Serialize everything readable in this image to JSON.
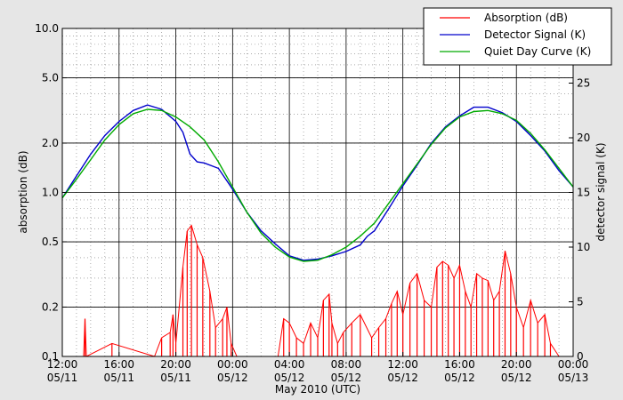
{
  "chart_data": {
    "type": "line",
    "title": "",
    "xlabel": "May 2010 (UTC)",
    "ylabel_left": "absorption (dB)",
    "ylabel_right": "detector signal (K)",
    "y_left_scale": "log",
    "ylim_left": [
      0.1,
      10.0
    ],
    "ylim_right": [
      0,
      30
    ],
    "xlim_hours": [
      0,
      36
    ],
    "x_tick_labels": [
      {
        "hour": 0,
        "time": "12:00",
        "date": "05/11"
      },
      {
        "hour": 4,
        "time": "16:00",
        "date": "05/11"
      },
      {
        "hour": 8,
        "time": "20:00",
        "date": "05/11"
      },
      {
        "hour": 12,
        "time": "00:00",
        "date": "05/12"
      },
      {
        "hour": 16,
        "time": "04:00",
        "date": "05/12"
      },
      {
        "hour": 20,
        "time": "08:00",
        "date": "05/12"
      },
      {
        "hour": 24,
        "time": "12:00",
        "date": "05/12"
      },
      {
        "hour": 28,
        "time": "16:00",
        "date": "05/12"
      },
      {
        "hour": 32,
        "time": "20:00",
        "date": "05/12"
      },
      {
        "hour": 36,
        "time": "00:00",
        "date": "05/13"
      }
    ],
    "y_left_ticks": [
      {
        "value": 0.1,
        "label": "0.1"
      },
      {
        "value": 0.2,
        "label": "0.2"
      },
      {
        "value": 0.5,
        "label": "0.5"
      },
      {
        "value": 1.0,
        "label": "1.0"
      },
      {
        "value": 2.0,
        "label": "2.0"
      },
      {
        "value": 5.0,
        "label": "5.0"
      },
      {
        "value": 10.0,
        "label": "10.0"
      }
    ],
    "y_right_ticks": [
      {
        "value": 0,
        "label": "0"
      },
      {
        "value": 5,
        "label": "5"
      },
      {
        "value": 10,
        "label": "10"
      },
      {
        "value": 15,
        "label": "15"
      },
      {
        "value": 20,
        "label": "20"
      },
      {
        "value": 25,
        "label": "25"
      }
    ],
    "grid": true,
    "legend_position": "top-right",
    "series": [
      {
        "name": "Absorption (dB)",
        "axis": "left",
        "color": "#ff0000",
        "x": [
          1.5,
          1.6,
          1.7,
          3.5,
          6.5,
          7.0,
          7.6,
          7.8,
          8.0,
          8.5,
          8.8,
          9.1,
          9.5,
          9.9,
          10.4,
          10.8,
          11.3,
          11.6,
          11.9,
          12.3,
          15.2,
          15.6,
          16.0,
          16.5,
          17.0,
          17.5,
          18.0,
          18.4,
          18.8,
          19.0,
          19.4,
          19.8,
          20.4,
          21.0,
          21.8,
          22.3,
          22.8,
          23.2,
          23.6,
          24.0,
          24.5,
          25.0,
          25.5,
          26.0,
          26.4,
          26.8,
          27.2,
          27.6,
          28.0,
          28.4,
          28.8,
          29.2,
          29.6,
          30.0,
          30.4,
          30.8,
          31.2,
          31.6,
          32.0,
          32.5,
          33.0,
          33.5,
          34.0,
          34.4,
          35.0
        ],
        "y": [
          0.1,
          0.17,
          0.1,
          0.12,
          0.1,
          0.13,
          0.14,
          0.18,
          0.12,
          0.35,
          0.58,
          0.63,
          0.48,
          0.4,
          0.25,
          0.15,
          0.17,
          0.2,
          0.12,
          0.1,
          0.1,
          0.17,
          0.16,
          0.13,
          0.12,
          0.16,
          0.13,
          0.22,
          0.24,
          0.16,
          0.12,
          0.14,
          0.16,
          0.18,
          0.13,
          0.15,
          0.17,
          0.21,
          0.25,
          0.18,
          0.28,
          0.32,
          0.22,
          0.2,
          0.35,
          0.38,
          0.36,
          0.3,
          0.36,
          0.25,
          0.2,
          0.32,
          0.3,
          0.29,
          0.22,
          0.25,
          0.44,
          0.32,
          0.2,
          0.15,
          0.22,
          0.16,
          0.18,
          0.12,
          0.1
        ]
      },
      {
        "name": "Detector Signal (K)",
        "axis": "right",
        "color": "#0000cc",
        "x": [
          0,
          1,
          2,
          3,
          4,
          5,
          6,
          7,
          8,
          8.5,
          9,
          9.5,
          10,
          11,
          12,
          13,
          14,
          15,
          16,
          17,
          18,
          19,
          20,
          21,
          21.5,
          22,
          23,
          24,
          25,
          26,
          27,
          28,
          29,
          30,
          31,
          32,
          33,
          34,
          35,
          36
        ],
        "y": [
          14.5,
          16.5,
          18.5,
          20.2,
          21.5,
          22.5,
          23.0,
          22.6,
          21.5,
          20.5,
          18.5,
          17.8,
          17.7,
          17.2,
          15.3,
          13.2,
          11.5,
          10.3,
          9.2,
          8.8,
          8.9,
          9.2,
          9.6,
          10.2,
          11.0,
          11.5,
          13.5,
          15.6,
          17.5,
          19.5,
          21.0,
          22.0,
          22.8,
          22.8,
          22.3,
          21.5,
          20.2,
          18.8,
          17.0,
          15.5
        ]
      },
      {
        "name": "Quiet Day Curve (K)",
        "axis": "right",
        "color": "#00aa00",
        "x": [
          0,
          1,
          2,
          3,
          4,
          5,
          6,
          7,
          8,
          9,
          10,
          11,
          12,
          13,
          14,
          15,
          16,
          17,
          18,
          19,
          20,
          21,
          22,
          23,
          24,
          25,
          26,
          27,
          28,
          29,
          30,
          31,
          32,
          33,
          34,
          35,
          36
        ],
        "y": [
          14.5,
          16.2,
          18.0,
          19.8,
          21.2,
          22.2,
          22.6,
          22.5,
          21.9,
          21.0,
          19.8,
          17.8,
          15.5,
          13.2,
          11.3,
          10.0,
          9.1,
          8.7,
          8.8,
          9.3,
          10.0,
          11.0,
          12.2,
          14.0,
          15.8,
          17.6,
          19.4,
          20.9,
          21.9,
          22.4,
          22.5,
          22.2,
          21.6,
          20.4,
          18.9,
          17.2,
          15.5
        ]
      }
    ]
  }
}
